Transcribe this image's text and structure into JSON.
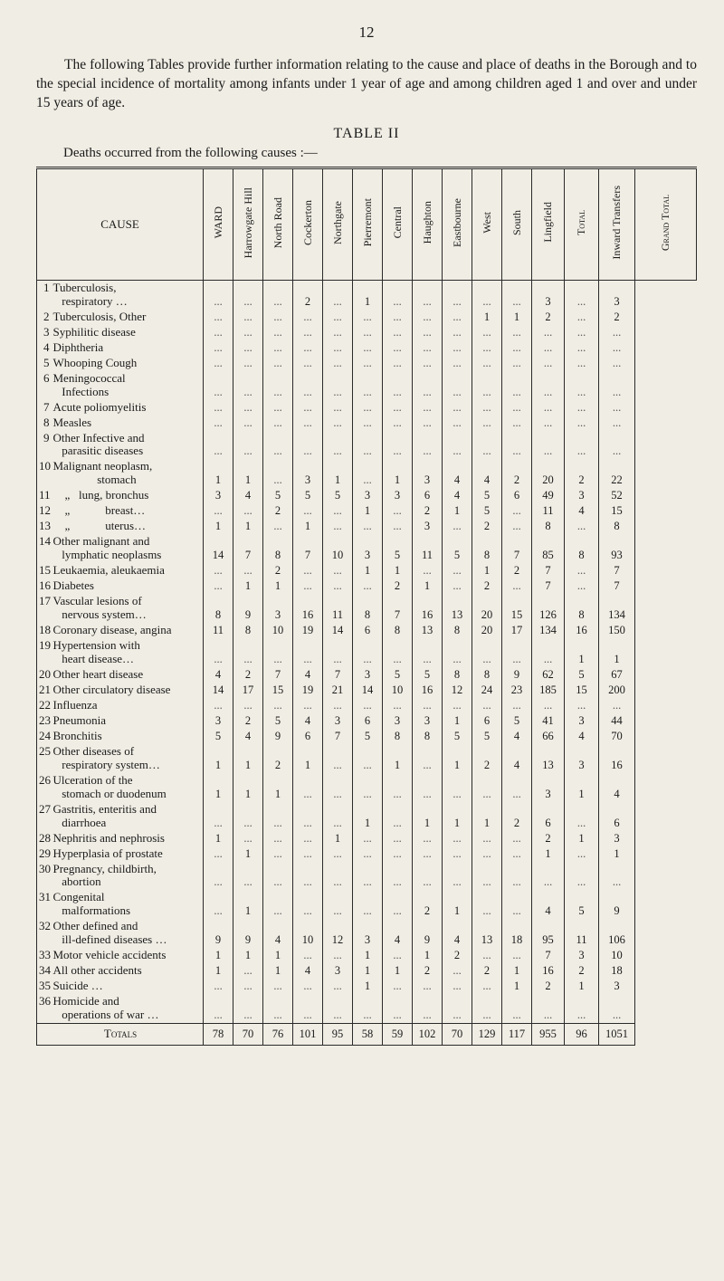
{
  "page_number": "12",
  "intro": "The following Tables provide further information relating to the cause and place of deaths in the Borough and to the special incidence of mortality among infants under 1 year of age and among children aged 1 and over and under 15 years of age.",
  "table_title": "TABLE II",
  "table_sub": "Deaths occurred from the following causes :—",
  "columns": [
    "CAUSE",
    "WARD",
    "Harrowgate Hill",
    "North Road",
    "Cockerton",
    "Northgate",
    "Pierremont",
    "Central",
    "Haughton",
    "Eastbourne",
    "West",
    "South",
    "Lingfield",
    "Total",
    "Inward Transfers",
    "Grand Total"
  ],
  "rows": [
    {
      "n": "1",
      "label": "Tuberculosis,\n   respiratory …",
      "v": [
        "",
        "",
        "",
        "2",
        "",
        "1",
        "",
        "",
        "",
        "",
        "",
        "3",
        "",
        "3"
      ]
    },
    {
      "n": "2",
      "label": "Tuberculosis, Other",
      "v": [
        "",
        "",
        "",
        "",
        "",
        "",
        "",
        "",
        "",
        "1",
        "1",
        "2",
        "",
        "2"
      ]
    },
    {
      "n": "3",
      "label": "Syphilitic disease",
      "v": [
        "",
        "",
        "",
        "",
        "",
        "",
        "",
        "",
        "",
        "",
        "",
        "",
        "",
        ""
      ]
    },
    {
      "n": "4",
      "label": "Diphtheria",
      "v": [
        "",
        "",
        "",
        "",
        "",
        "",
        "",
        "",
        "",
        "",
        "",
        "",
        "",
        ""
      ]
    },
    {
      "n": "5",
      "label": "Whooping Cough",
      "v": [
        "",
        "",
        "",
        "",
        "",
        "",
        "",
        "",
        "",
        "",
        "",
        "",
        "",
        ""
      ]
    },
    {
      "n": "6",
      "label": "Meningococcal\n   Infections",
      "v": [
        "",
        "",
        "",
        "",
        "",
        "",
        "",
        "",
        "",
        "",
        "",
        "",
        "",
        ""
      ]
    },
    {
      "n": "7",
      "label": "Acute poliomyelitis",
      "v": [
        "",
        "",
        "",
        "",
        "",
        "",
        "",
        "",
        "",
        "",
        "",
        "",
        "",
        ""
      ]
    },
    {
      "n": "8",
      "label": "Measles",
      "v": [
        "",
        "",
        "",
        "",
        "",
        "",
        "",
        "",
        "",
        "",
        "",
        "",
        "",
        ""
      ]
    },
    {
      "n": "9",
      "label": "Other Infective and\n   parasitic diseases",
      "v": [
        "",
        "",
        "",
        "",
        "",
        "",
        "",
        "",
        "",
        "",
        "",
        "",
        "",
        ""
      ]
    },
    {
      "n": "10",
      "label": "Malignant neoplasm,\n               stomach",
      "v": [
        "1",
        "1",
        "",
        "3",
        "1",
        "",
        "1",
        "3",
        "4",
        "4",
        "2",
        "20",
        "2",
        "22"
      ]
    },
    {
      "n": "11",
      "label": "    „   lung, bronchus",
      "v": [
        "3",
        "4",
        "5",
        "5",
        "5",
        "3",
        "3",
        "6",
        "4",
        "5",
        "6",
        "49",
        "3",
        "52"
      ]
    },
    {
      "n": "12",
      "label": "    „            breast…",
      "v": [
        "",
        "",
        "2",
        "",
        "",
        "1",
        "",
        "2",
        "1",
        "5",
        "",
        "11",
        "4",
        "15"
      ]
    },
    {
      "n": "13",
      "label": "    „            uterus…",
      "v": [
        "1",
        "1",
        "",
        "1",
        "",
        "",
        "",
        "3",
        "",
        "2",
        "",
        "8",
        "",
        "8"
      ]
    },
    {
      "n": "14",
      "label": "Other malignant and\n   lymphatic neoplasms",
      "v": [
        "14",
        "7",
        "8",
        "7",
        "10",
        "3",
        "5",
        "11",
        "5",
        "8",
        "7",
        "85",
        "8",
        "93"
      ]
    },
    {
      "n": "15",
      "label": "Leukaemia, aleukaemia",
      "v": [
        "",
        "",
        "2",
        "",
        "",
        "1",
        "1",
        "",
        "",
        "1",
        "2",
        "7",
        "",
        "7"
      ]
    },
    {
      "n": "16",
      "label": "Diabetes",
      "v": [
        "",
        "1",
        "1",
        "",
        "",
        "",
        "2",
        "1",
        "",
        "2",
        "",
        "7",
        "",
        "7"
      ]
    },
    {
      "n": "17",
      "label": "Vascular lesions of\n   nervous system…",
      "v": [
        "8",
        "9",
        "3",
        "16",
        "11",
        "8",
        "7",
        "16",
        "13",
        "20",
        "15",
        "126",
        "8",
        "134"
      ]
    },
    {
      "n": "18",
      "label": "Coronary disease, angina",
      "v": [
        "11",
        "8",
        "10",
        "19",
        "14",
        "6",
        "8",
        "13",
        "8",
        "20",
        "17",
        "134",
        "16",
        "150"
      ]
    },
    {
      "n": "19",
      "label": "Hypertension with\n   heart disease…",
      "v": [
        "",
        "",
        "",
        "",
        "",
        "",
        "",
        "",
        "",
        "",
        "",
        "",
        "1",
        "1"
      ]
    },
    {
      "n": "20",
      "label": "Other heart disease",
      "v": [
        "4",
        "2",
        "7",
        "4",
        "7",
        "3",
        "5",
        "5",
        "8",
        "8",
        "9",
        "62",
        "5",
        "67"
      ]
    },
    {
      "n": "21",
      "label": "Other circulatory disease",
      "v": [
        "14",
        "17",
        "15",
        "19",
        "21",
        "14",
        "10",
        "16",
        "12",
        "24",
        "23",
        "185",
        "15",
        "200"
      ]
    },
    {
      "n": "22",
      "label": "Influenza",
      "v": [
        "",
        "",
        "",
        "",
        "",
        "",
        "",
        "",
        "",
        "",
        "",
        "",
        "",
        ""
      ]
    },
    {
      "n": "23",
      "label": "Pneumonia",
      "v": [
        "3",
        "2",
        "5",
        "4",
        "3",
        "6",
        "3",
        "3",
        "1",
        "6",
        "5",
        "41",
        "3",
        "44"
      ]
    },
    {
      "n": "24",
      "label": "Bronchitis",
      "v": [
        "5",
        "4",
        "9",
        "6",
        "7",
        "5",
        "8",
        "8",
        "5",
        "5",
        "4",
        "66",
        "4",
        "70"
      ]
    },
    {
      "n": "25",
      "label": "Other diseases of\n   respiratory system…",
      "v": [
        "1",
        "1",
        "2",
        "1",
        "",
        "",
        "1",
        "",
        "1",
        "2",
        "4",
        "13",
        "3",
        "16"
      ]
    },
    {
      "n": "26",
      "label": "Ulceration of the\n   stomach or duodenum",
      "v": [
        "1",
        "1",
        "1",
        "",
        "",
        "",
        "",
        "",
        "",
        "",
        "",
        "3",
        "1",
        "4"
      ]
    },
    {
      "n": "27",
      "label": "Gastritis, enteritis and\n   diarrhoea",
      "v": [
        "",
        "",
        "",
        "",
        "",
        "1",
        "",
        "1",
        "1",
        "1",
        "2",
        "6",
        "",
        "6"
      ]
    },
    {
      "n": "28",
      "label": "Nephritis and nephrosis",
      "v": [
        "1",
        "",
        "",
        "",
        "1",
        "",
        "",
        "",
        "",
        "",
        "",
        "2",
        "1",
        "3"
      ]
    },
    {
      "n": "29",
      "label": "Hyperplasia of prostate",
      "v": [
        "",
        "1",
        "",
        "",
        "",
        "",
        "",
        "",
        "",
        "",
        "",
        "1",
        "",
        "1"
      ]
    },
    {
      "n": "30",
      "label": "Pregnancy, childbirth,\n   abortion",
      "v": [
        "",
        "",
        "",
        "",
        "",
        "",
        "",
        "",
        "",
        "",
        "",
        "",
        "",
        ""
      ]
    },
    {
      "n": "31",
      "label": "Congenital\n   malformations",
      "v": [
        "",
        "1",
        "",
        "",
        "",
        "",
        "",
        "2",
        "1",
        "",
        "",
        "4",
        "5",
        "9"
      ]
    },
    {
      "n": "32",
      "label": "Other defined and\n   ill-defined diseases …",
      "v": [
        "9",
        "9",
        "4",
        "10",
        "12",
        "3",
        "4",
        "9",
        "4",
        "13",
        "18",
        "95",
        "11",
        "106"
      ]
    },
    {
      "n": "33",
      "label": "Motor vehicle accidents",
      "v": [
        "1",
        "1",
        "1",
        "",
        "",
        "1",
        "",
        "1",
        "2",
        "",
        "",
        "7",
        "3",
        "10"
      ]
    },
    {
      "n": "34",
      "label": "All other accidents",
      "v": [
        "1",
        "",
        "1",
        "4",
        "3",
        "1",
        "1",
        "2",
        "",
        "2",
        "1",
        "16",
        "2",
        "18"
      ]
    },
    {
      "n": "35",
      "label": "Suicide …",
      "v": [
        "",
        "",
        "",
        "",
        "",
        "1",
        "",
        "",
        "",
        "",
        "1",
        "2",
        "1",
        "3"
      ]
    },
    {
      "n": "36",
      "label": "Homicide and\n   operations of war …",
      "v": [
        "",
        "",
        "",
        "",
        "",
        "",
        "",
        "",
        "",
        "",
        "",
        "",
        "",
        ""
      ]
    }
  ],
  "totals": {
    "label": "Totals",
    "v": [
      "78",
      "70",
      "76",
      "101",
      "95",
      "58",
      "59",
      "102",
      "70",
      "129",
      "117",
      "955",
      "96",
      "1051"
    ]
  },
  "colors": {
    "bg": "#f0ede4",
    "ink": "#1a1a1a",
    "rule": "#2a2a2a"
  },
  "fontsize": {
    "page_number": 17,
    "body": 15.5,
    "table_title": 16,
    "cell": 12.5,
    "header": 12
  }
}
